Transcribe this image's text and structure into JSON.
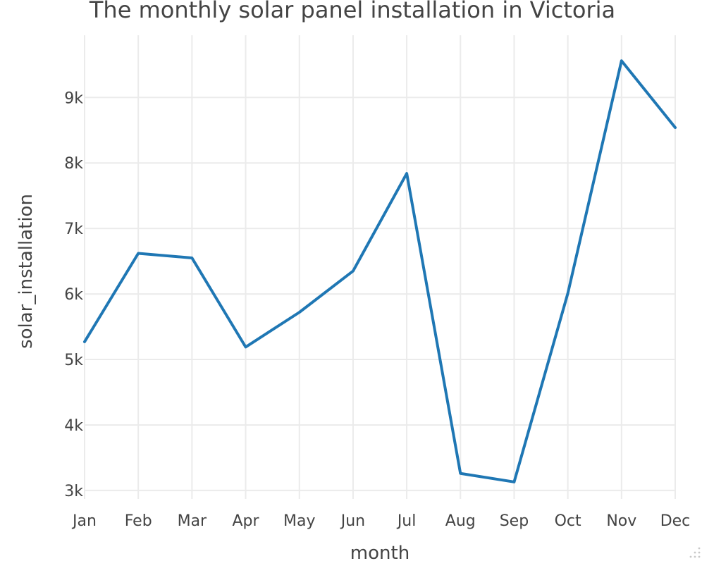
{
  "chart_data": {
    "type": "line",
    "title": "The monthly solar panel installation in Victoria",
    "xlabel": "month",
    "ylabel": "solar_installation",
    "categories": [
      "Jan",
      "Feb",
      "Mar",
      "Apr",
      "May",
      "Jun",
      "Jul",
      "Aug",
      "Sep",
      "Oct",
      "Nov",
      "Dec"
    ],
    "series": [
      {
        "values": [
          5270,
          6620,
          6550,
          5190,
          5720,
          6350,
          7840,
          3260,
          3130,
          6010,
          9560,
          8540
        ]
      }
    ],
    "yticks": [
      3000,
      4000,
      5000,
      6000,
      7000,
      8000,
      9000
    ],
    "ytick_labels": [
      "3k",
      "4k",
      "5k",
      "6k",
      "7k",
      "8k",
      "9k"
    ],
    "ylim": [
      2870,
      9950
    ],
    "grid": true,
    "color": "#1f77b4"
  }
}
